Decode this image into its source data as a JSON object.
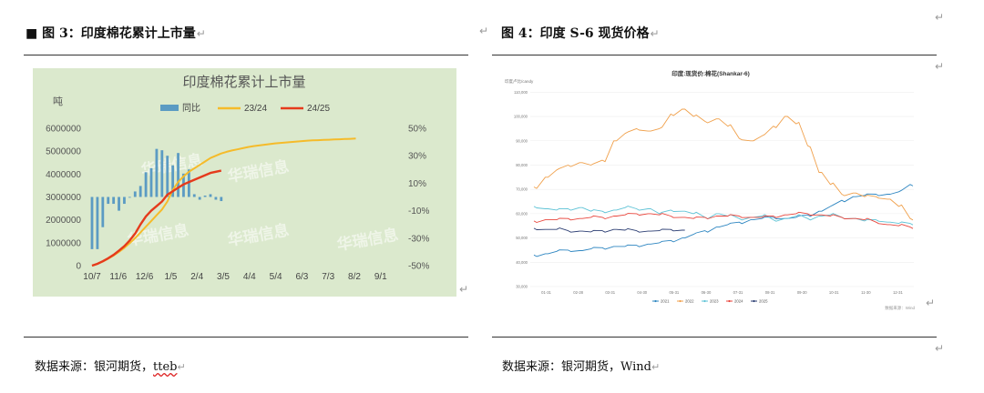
{
  "figure3": {
    "marker": "■",
    "title": "图 3：印度棉花累计上市量",
    "source_prefix": "数据来源：银河期货，",
    "source_last": "tteb"
  },
  "figure4": {
    "title": "图 4：印度 S-6 现货价格",
    "source": "数据来源：银河期货，Wind"
  },
  "paragraph_mark": "↵",
  "chart_data": [
    {
      "type": "line",
      "title": "印度棉花累计上市量",
      "ylabel": "吨",
      "x_ticks": [
        "10/7",
        "11/6",
        "12/6",
        "1/5",
        "2/4",
        "3/5",
        "4/4",
        "5/4",
        "6/3",
        "7/3",
        "8/2",
        "9/1"
      ],
      "y_ticks": [
        "0",
        "1000000",
        "2000000",
        "3000000",
        "4000000",
        "5000000",
        "6000000"
      ],
      "y2_ticks": [
        "-50%",
        "-30%",
        "-10%",
        "10%",
        "30%",
        "50%"
      ],
      "ylim": [
        0,
        6000000
      ],
      "y2lim": [
        -0.5,
        0.5
      ],
      "watermark": "华瑞信息",
      "legend": [
        "同比",
        "23/24",
        "24/25"
      ],
      "colors": {
        "bg": "#dbe9cd",
        "yoy": "#5b9bc3",
        "s2324": "#f5bb2a",
        "s2425": "#e53a1c"
      },
      "series": [
        {
          "name": "23/24",
          "type": "line",
          "x": [
            0,
            1,
            2,
            3,
            4,
            5,
            6,
            7,
            8,
            9,
            10,
            11,
            12,
            13,
            14,
            15,
            16,
            17,
            18,
            19,
            20,
            21,
            22,
            23,
            24,
            25,
            26,
            27,
            28,
            29,
            30,
            31,
            32,
            33,
            34,
            35,
            36,
            37,
            38,
            39,
            40,
            41,
            42,
            43,
            44,
            45,
            46,
            47,
            48,
            49
          ],
          "values": [
            0,
            80000,
            180000,
            300000,
            440000,
            600000,
            780000,
            980000,
            1200000,
            1450000,
            1700000,
            1950000,
            2200000,
            2450000,
            2800000,
            3300000,
            3650000,
            3900000,
            4100000,
            4250000,
            4400000,
            4550000,
            4700000,
            4800000,
            4900000,
            4970000,
            5030000,
            5080000,
            5130000,
            5180000,
            5220000,
            5250000,
            5280000,
            5310000,
            5340000,
            5360000,
            5380000,
            5400000,
            5420000,
            5440000,
            5460000,
            5470000,
            5480000,
            5490000,
            5500000,
            5510000,
            5520000,
            5530000,
            5540000,
            5550000
          ]
        },
        {
          "name": "24/25",
          "type": "line",
          "x": [
            0,
            1,
            2,
            3,
            4,
            5,
            6,
            7,
            8,
            9,
            10,
            11,
            12,
            13,
            14,
            15,
            16,
            17,
            18,
            19,
            20,
            21,
            22,
            23,
            24
          ],
          "values": [
            0,
            80000,
            190000,
            320000,
            470000,
            650000,
            850000,
            1100000,
            1400000,
            1800000,
            2150000,
            2400000,
            2600000,
            2800000,
            3100000,
            3250000,
            3400000,
            3550000,
            3650000,
            3750000,
            3850000,
            3950000,
            4050000,
            4100000,
            4150000
          ]
        },
        {
          "name": "同比",
          "type": "bar",
          "x": [
            0,
            1,
            2,
            3,
            4,
            5,
            6,
            7,
            8,
            9,
            10,
            11,
            12,
            13,
            14,
            15,
            16,
            17,
            18,
            19,
            20,
            21,
            22,
            23,
            24
          ],
          "values": [
            -0.38,
            -0.38,
            -0.22,
            -0.05,
            -0.05,
            -0.1,
            -0.05,
            0.0,
            0.04,
            0.08,
            0.18,
            0.21,
            0.35,
            0.34,
            0.3,
            0.23,
            0.32,
            0.17,
            0.2,
            0.02,
            -0.02,
            0.01,
            0.02,
            -0.02,
            -0.03
          ]
        }
      ]
    },
    {
      "type": "line",
      "title": "印度:现货价:棉花(Shankar-6)",
      "ylabel": "印度卢比/candy",
      "source_note": "数据来源：Wind",
      "x_ticks": [
        "01-31",
        "02-28",
        "03-31",
        "04-30",
        "05-31",
        "06-30",
        "07-31",
        "08-31",
        "09-30",
        "10-31",
        "11-30",
        "12-31"
      ],
      "y_ticks": [
        "30,000",
        "40,000",
        "50,000",
        "60,000",
        "70,000",
        "80,000",
        "90,000",
        "100,000",
        "110,000"
      ],
      "ylim": [
        30000,
        112000
      ],
      "legend_position": "bottom",
      "series": [
        {
          "name": "2021",
          "color": "#2e86c1",
          "values": [
            43000,
            43500,
            44500,
            45000,
            44800,
            45500,
            46000,
            46500,
            46500,
            47000,
            47500,
            48000,
            49000,
            50000,
            51500,
            53000,
            54500,
            55500,
            56500,
            57500,
            58000,
            58500,
            58000,
            58500,
            59500,
            61000,
            63000,
            65500,
            67000,
            67500,
            68000,
            68000,
            69000,
            72000
          ]
        },
        {
          "name": "2022",
          "color": "#f0a04b",
          "values": [
            71000,
            75000,
            78000,
            80000,
            81000,
            80000,
            82000,
            90000,
            93000,
            95000,
            94000,
            95000,
            101000,
            103000,
            100000,
            98000,
            99000,
            96000,
            91000,
            90000,
            92000,
            96000,
            100000,
            97000,
            88000,
            77000,
            72000,
            68000,
            68500,
            67000,
            67000,
            66000,
            63000,
            58000
          ]
        },
        {
          "name": "2023",
          "color": "#5fc3d6",
          "values": [
            63000,
            62000,
            61500,
            62000,
            62500,
            61000,
            61000,
            61500,
            62500,
            62000,
            62000,
            60000,
            61500,
            61000,
            60000,
            58500,
            60000,
            59000,
            58000,
            58500,
            59000,
            57500,
            58000,
            59000,
            58000,
            59000,
            59500,
            58500,
            58000,
            57000,
            57500,
            56500,
            56000,
            56000
          ]
        },
        {
          "name": "2024",
          "color": "#e8453c",
          "values": [
            57000,
            57500,
            57500,
            58000,
            58000,
            58500,
            58500,
            59000,
            59500,
            60000,
            60000,
            59500,
            59000,
            58500,
            58000,
            58500,
            59000,
            59000,
            59000,
            58500,
            58500,
            59000,
            59500,
            60000,
            60000,
            59500,
            59000,
            58500,
            58000,
            57500,
            56500,
            55500,
            55000,
            54500
          ]
        },
        {
          "name": "2025",
          "color": "#2c3e73",
          "values": [
            54000,
            53500,
            53500,
            53000,
            52800,
            52500,
            53000,
            53500,
            53200,
            53000,
            52800,
            53000,
            53500,
            53200
          ]
        }
      ]
    }
  ]
}
